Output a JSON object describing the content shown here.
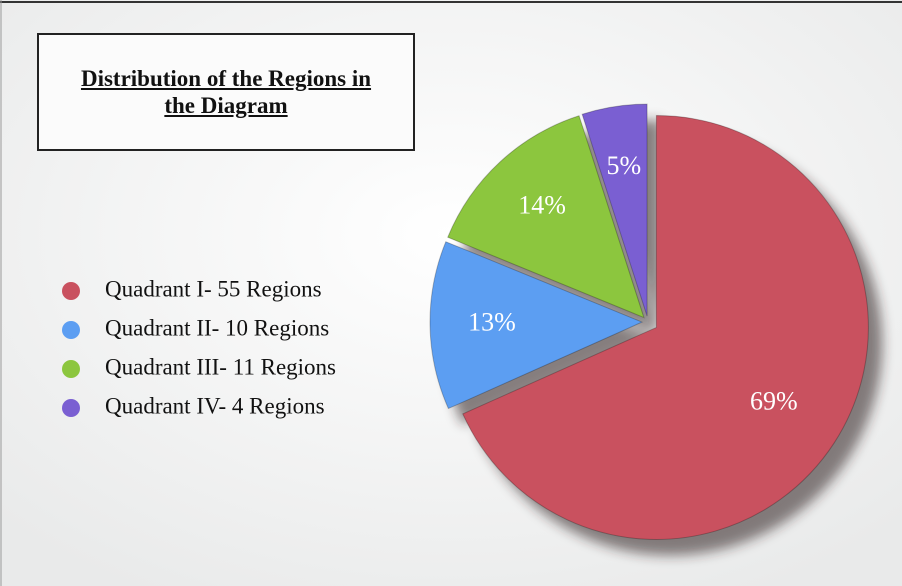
{
  "chart_data": {
    "type": "pie",
    "title": "Distribution of the Regions in the Diagram",
    "categories": [
      "Quadrant I- 55 Regions",
      "Quadrant II- 10 Regions",
      "Quadrant III- 11 Regions",
      "Quadrant IV- 4 Regions"
    ],
    "values": [
      69,
      13,
      14,
      5
    ],
    "value_labels": [
      "69%",
      "13%",
      "14%",
      "5%"
    ],
    "colors": [
      "#c9515f",
      "#5c9ef2",
      "#8cc63e",
      "#7a5fd2"
    ],
    "legend": "left"
  }
}
